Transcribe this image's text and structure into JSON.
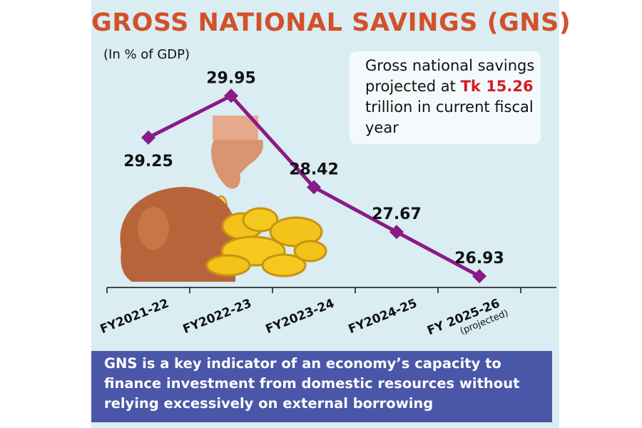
{
  "title": "GROSS NATIONAL SAVINGS (GNS)",
  "subtitle": "(In % of GDP)",
  "callout": {
    "before": "Gross national savings projected at ",
    "highlight": "Tk 15.26",
    "after": " trillion in current fiscal year"
  },
  "note": "GNS is a key indicator of an economy’s capacity to finance investment from domestic resources without relying excessively on external borrowing",
  "colors": {
    "title": "#d2512a",
    "line": "#8a1a86",
    "panel": "#d9edf2",
    "note_bg": "#4a57a8",
    "highlight": "#d31e25"
  },
  "chart_data": {
    "type": "line",
    "title": "GROSS NATIONAL SAVINGS (GNS)",
    "ylabel": "(In % of GDP)",
    "categories": [
      "FY2021-22",
      "FY2022-23",
      "FY2023-24",
      "FY2024-25",
      "FY 2025-26"
    ],
    "category_notes": [
      "",
      "",
      "",
      "",
      "(projected)"
    ],
    "values": [
      29.25,
      29.95,
      28.42,
      27.67,
      26.93
    ],
    "data_labels": [
      "29.25",
      "29.95",
      "28.42",
      "27.67",
      "26.93"
    ],
    "ylim": [
      26.55,
      30.55
    ],
    "grid": false,
    "legend": "none"
  }
}
